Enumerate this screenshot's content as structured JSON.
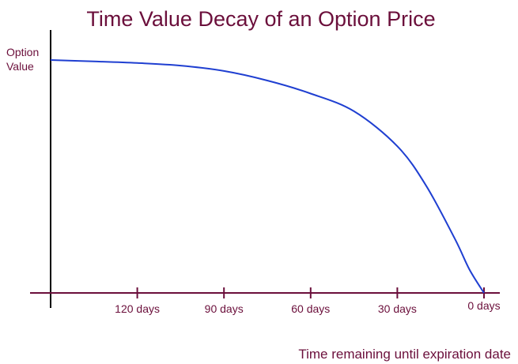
{
  "chart_data": {
    "type": "line",
    "title": "Time Value Decay of an Option Price",
    "ylabel_lines": [
      "Option",
      "Value"
    ],
    "xlabel": "Time remaining until expiration date",
    "x_tick_labels": [
      "120 days",
      "90 days",
      "60 days",
      "30 days",
      "0 days"
    ],
    "x_tick_values": [
      120,
      90,
      60,
      30,
      0
    ],
    "x_start_days": 150,
    "xlim": [
      150,
      0
    ],
    "ylim": [
      0,
      100
    ],
    "series": [
      {
        "x": [
          150,
          135,
          120,
          105,
          90,
          75,
          60,
          45,
          30,
          20,
          10,
          5,
          0
        ],
        "y": [
          100,
          99.4,
          98.7,
          97.6,
          95.3,
          91.2,
          85.6,
          78.0,
          63.0,
          46.0,
          23.0,
          10.0,
          0
        ]
      }
    ],
    "colors": {
      "text": "#6b0f3b",
      "axis_y": "#000000",
      "axis_x": "#6b0f3b",
      "line": "#1f3fd1"
    }
  }
}
